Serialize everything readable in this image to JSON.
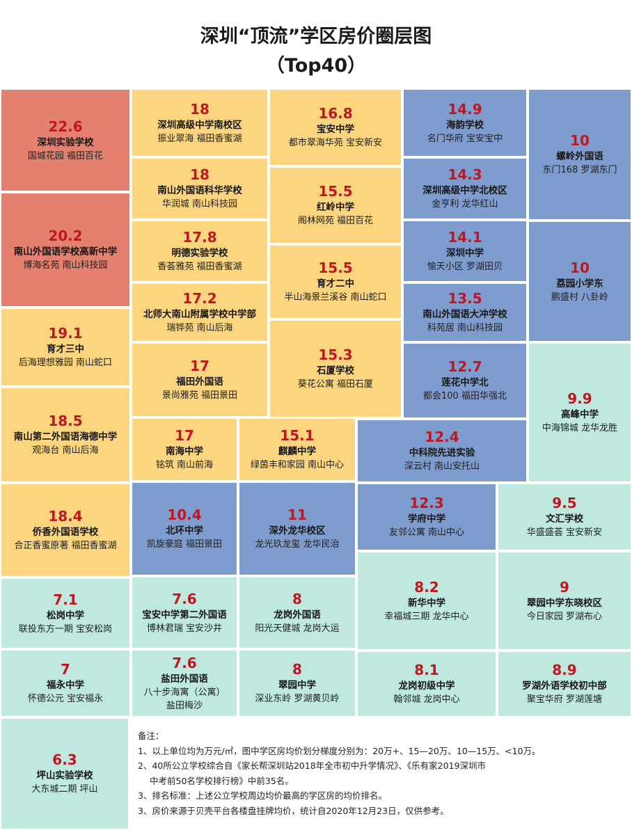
{
  "title_line1": "深圳“顶流”学区房价圈层图",
  "title_line2": "（Top40）",
  "tier_colors": {
    "20万+": "#e4806f",
    "15—20万": "#fcd57e",
    "10—15万": "#7f9ccf",
    "<10万": "#bfe8df"
  },
  "chart_data": {
    "type": "treemap",
    "unit": "万元/㎡",
    "items": [
      {
        "value": 22.6,
        "school": "深圳实验学校",
        "estates": "国城花园 福田百花"
      },
      {
        "value": 20.2,
        "school": "南山外国语学校高新中学",
        "estates": "博海名苑 南山科技园"
      },
      {
        "value": 19.1,
        "school": "育才三中",
        "estates": "后海理想雅园 南山蛇口"
      },
      {
        "value": 18.5,
        "school": "南山第二外国语海德中学",
        "estates": "观海台 南山后海"
      },
      {
        "value": 18.4,
        "school": "侨香外国语学校",
        "estates": "合正香蜜原著 福田香蜜湖"
      },
      {
        "value": 18,
        "school": "深圳高级中学南校区",
        "estates": "振业翠海 福田香蜜湖"
      },
      {
        "value": 18,
        "school": "南山外国语科华学校",
        "estates": "华润城 南山科技园"
      },
      {
        "value": 17.8,
        "school": "明德实验学校",
        "estates": "香荟雅苑 福田香蜜湖"
      },
      {
        "value": 17.2,
        "school": "北师大南山附属学校中学部",
        "estates": "瑞铧苑 南山后海"
      },
      {
        "value": 17,
        "school": "福田外国语",
        "estates": "景尚雅苑 福田景田"
      },
      {
        "value": 16.8,
        "school": "宝安中学",
        "estates": "都市翠海华苑 宝安新安"
      },
      {
        "value": 15.5,
        "school": "红岭中学",
        "estates": "阁林网苑 福田百花"
      },
      {
        "value": 15.5,
        "school": "育才二中",
        "estates": "半山海景兰溪谷 南山蛇口"
      },
      {
        "value": 15.3,
        "school": "石厦学校",
        "estates": "葵花公寓 福田石厦"
      },
      {
        "value": 17,
        "school": "南海中学",
        "estates": "铭筑 南山前海"
      },
      {
        "value": 15.1,
        "school": "麒麟中学",
        "estates": "绿茵丰和家园 南山中心"
      },
      {
        "value": 14.9,
        "school": "海韵学校",
        "estates": "名门华府 宝安宝中"
      },
      {
        "value": 14.3,
        "school": "深圳高级中学北校区",
        "estates": "金亨利 龙华红山"
      },
      {
        "value": 14.1,
        "school": "深圳中学",
        "estates": "愉天小区 罗湖田贝"
      },
      {
        "value": 13.5,
        "school": "南山外国语大冲学校",
        "estates": "科苑居 南山科技园"
      },
      {
        "value": 12.7,
        "school": "莲花中学北",
        "estates": "都会100 福田华强北"
      },
      {
        "value": 12.4,
        "school": "中科院先进实验",
        "estates": "深云村 南山安托山"
      },
      {
        "value": 12.3,
        "school": "学府中学",
        "estates": "友邻公寓 南山中心"
      },
      {
        "value": 10.4,
        "school": "北环中学",
        "estates": "凯旋豪庭 福田景田"
      },
      {
        "value": 11,
        "school": "深外龙华校区",
        "estates": "龙光玖龙玺 龙华民治"
      },
      {
        "value": 10,
        "school": "螺岭外国语",
        "estates": "东门168 罗湖东门"
      },
      {
        "value": 10,
        "school": "荔园小学东",
        "estates": "鹏盛村 八卦岭"
      },
      {
        "value": 9.9,
        "school": "高峰中学",
        "estates": "中海锦城 龙华龙胜"
      },
      {
        "value": 9.5,
        "school": "文汇学校",
        "estates": "华盛盛荟 宝安新安"
      },
      {
        "value": 9,
        "school": "翠园中学东晓校区",
        "estates": "今日家园 罗湖布心"
      },
      {
        "value": 8.9,
        "school": "罗湖外语学校初中部",
        "estates": "聚宝华府 罗湖莲塘"
      },
      {
        "value": 8.2,
        "school": "新华中学",
        "estates": "幸福城三期 龙华中心"
      },
      {
        "value": 8.1,
        "school": "龙岗初级中学",
        "estates": "翰邻城 龙岗中心"
      },
      {
        "value": 8,
        "school": "龙岗外国语",
        "estates": "阳光天健城 龙岗大运"
      },
      {
        "value": 8,
        "school": "翠园中学",
        "estates": "深业东岭 罗湖黄贝岭"
      },
      {
        "value": 7.6,
        "school": "宝安中学第二外国语",
        "estates": "博林君瑞 宝安沙井"
      },
      {
        "value": 7.6,
        "school": "盐田外国语",
        "estates": "八十步海寓（公寓）",
        "estates2": "盐田梅沙"
      },
      {
        "value": 7.1,
        "school": "松岗中学",
        "estates": "联投东方一期 宝安松岗"
      },
      {
        "value": 7,
        "school": "福永中学",
        "estates": "怀德公元 宝安福永"
      },
      {
        "value": 6.3,
        "school": "坪山实验学校",
        "estates": "大东城二期 坪山"
      }
    ]
  },
  "notes": {
    "heading": "备注：",
    "line1": "1、以上单位均为万元/㎡，图中学区房均价划分梯度分别为：20万+、15—20万、10—15万、<10万。",
    "line2a": "2、40所公立学校综合自《家长帮深圳站2018年全市初中升学情况》、《乐有家2019深圳市",
    "line2b": "中考前50名学校排行榜》中前35名。",
    "line3": "3、排名标准：上述公立学校周边均价最高的学区房的均价排名。",
    "line4": "3、房价来源于贝壳平台各楼盘挂牌均价，统计自2020年12月23日，仅供参考。"
  }
}
